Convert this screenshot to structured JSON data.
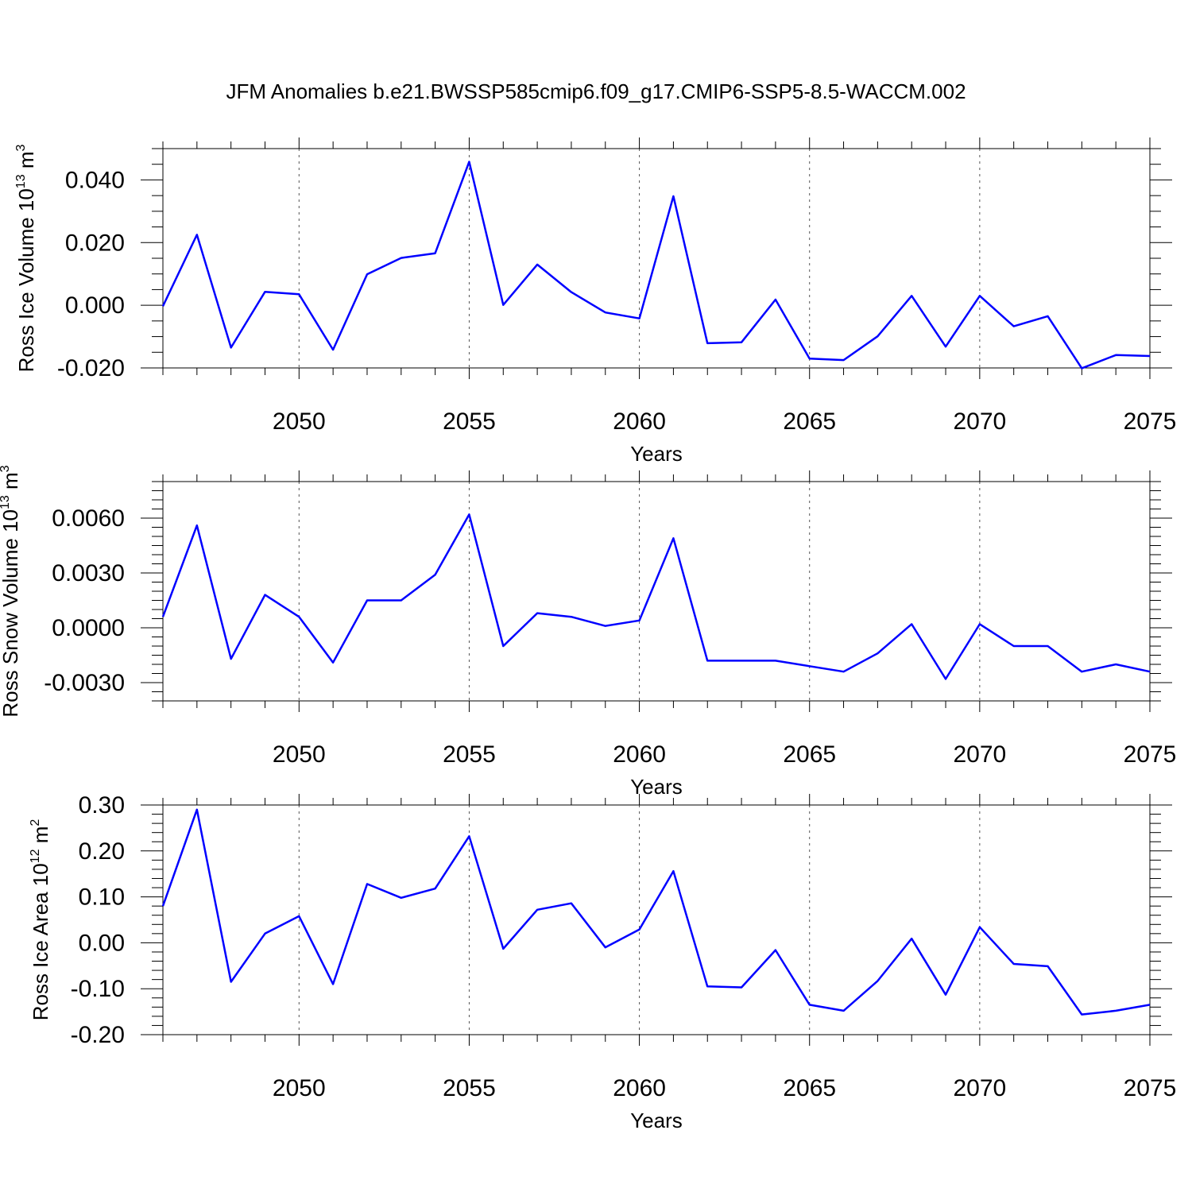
{
  "title": "JFM Anomalies b.e21.BWSSP585cmip6.f09_g17.CMIP6-SSP5-8.5-WACCM.002",
  "line_color": "#0000ff",
  "chart_data": [
    {
      "type": "line",
      "ylabel": "Ross Ice Volume 10",
      "ylabel_sup": "13",
      "ylabel_unit": "m",
      "ylabel_unit_sup": "3",
      "xlabel": "Years",
      "xlim": [
        2046,
        2075
      ],
      "ylim": [
        -0.02,
        0.05
      ],
      "xticks": [
        2050,
        2055,
        2060,
        2065,
        2070,
        2075
      ],
      "xtick_labels": [
        "2050",
        "2055",
        "2060",
        "2065",
        "2070",
        "2075"
      ],
      "yticks": [
        -0.02,
        0.0,
        0.02,
        0.04
      ],
      "ytick_labels": [
        "-0.020",
        "0.000",
        "0.020",
        "0.040"
      ],
      "y_minor_step": 0.005,
      "grid_x": true,
      "x": [
        2046,
        2047,
        2048,
        2049,
        2050,
        2051,
        2052,
        2053,
        2054,
        2055,
        2056,
        2057,
        2058,
        2059,
        2060,
        2061,
        2062,
        2063,
        2064,
        2065,
        2066,
        2067,
        2068,
        2069,
        2070,
        2071,
        2072,
        2073,
        2074,
        2075
      ],
      "values": [
        -0.0003,
        0.0225,
        -0.0135,
        0.0043,
        0.0035,
        -0.0142,
        0.0099,
        0.0151,
        0.0166,
        0.0458,
        0.0001,
        0.013,
        0.0042,
        -0.0023,
        -0.0042,
        0.0348,
        -0.0121,
        -0.0118,
        0.0018,
        -0.017,
        -0.0175,
        -0.0099,
        0.003,
        -0.0132,
        0.003,
        -0.0067,
        -0.0035,
        -0.0201,
        -0.0159,
        -0.0162
      ]
    },
    {
      "type": "line",
      "ylabel": "Ross Snow Volume 10",
      "ylabel_sup": "13",
      "ylabel_unit": "m",
      "ylabel_unit_sup": "3",
      "xlabel": "Years",
      "xlim": [
        2046,
        2075
      ],
      "ylim": [
        -0.004,
        0.008
      ],
      "xticks": [
        2050,
        2055,
        2060,
        2065,
        2070,
        2075
      ],
      "xtick_labels": [
        "2050",
        "2055",
        "2060",
        "2065",
        "2070",
        "2075"
      ],
      "yticks": [
        -0.003,
        0.0,
        0.003,
        0.006
      ],
      "ytick_labels": [
        "-0.0030",
        "0.0000",
        "0.0030",
        "0.0060"
      ],
      "y_minor_step": 0.0005,
      "grid_x": true,
      "x": [
        2046,
        2047,
        2048,
        2049,
        2050,
        2051,
        2052,
        2053,
        2054,
        2055,
        2056,
        2057,
        2058,
        2059,
        2060,
        2061,
        2062,
        2063,
        2064,
        2065,
        2066,
        2067,
        2068,
        2069,
        2070,
        2071,
        2072,
        2073,
        2074,
        2075
      ],
      "values": [
        0.0006,
        0.0056,
        -0.0017,
        0.0018,
        0.0006,
        -0.0019,
        0.0015,
        0.0015,
        0.0029,
        0.0062,
        -0.001,
        0.0008,
        0.0006,
        0.0001,
        0.0004,
        0.0049,
        -0.0018,
        -0.0018,
        -0.0018,
        -0.0021,
        -0.0024,
        -0.0014,
        0.0002,
        -0.0028,
        0.0002,
        -0.001,
        -0.001,
        -0.0024,
        -0.002,
        -0.0024
      ]
    },
    {
      "type": "line",
      "ylabel": "Ross Ice Area 10",
      "ylabel_sup": "12",
      "ylabel_unit": "m",
      "ylabel_unit_sup": "2",
      "xlabel": "Years",
      "xlim": [
        2046,
        2075
      ],
      "ylim": [
        -0.2,
        0.3
      ],
      "xticks": [
        2050,
        2055,
        2060,
        2065,
        2070,
        2075
      ],
      "xtick_labels": [
        "2050",
        "2055",
        "2060",
        "2065",
        "2070",
        "2075"
      ],
      "yticks": [
        -0.2,
        -0.1,
        0.0,
        0.1,
        0.2,
        0.3
      ],
      "ytick_labels": [
        "-0.20",
        "-0.10",
        "0.00",
        "0.10",
        "0.20",
        "0.30"
      ],
      "y_minor_step": 0.02,
      "grid_x": true,
      "x": [
        2046,
        2047,
        2048,
        2049,
        2050,
        2051,
        2052,
        2053,
        2054,
        2055,
        2056,
        2057,
        2058,
        2059,
        2060,
        2061,
        2062,
        2063,
        2064,
        2065,
        2066,
        2067,
        2068,
        2069,
        2070,
        2071,
        2072,
        2073,
        2074,
        2075
      ],
      "values": [
        0.08,
        0.29,
        -0.085,
        0.02,
        0.058,
        -0.09,
        0.128,
        0.098,
        0.118,
        0.232,
        -0.013,
        0.072,
        0.086,
        -0.01,
        0.029,
        0.156,
        -0.095,
        -0.097,
        -0.016,
        -0.135,
        -0.148,
        -0.083,
        0.009,
        -0.113,
        0.034,
        -0.046,
        -0.051,
        -0.156,
        -0.148,
        -0.135
      ]
    }
  ]
}
